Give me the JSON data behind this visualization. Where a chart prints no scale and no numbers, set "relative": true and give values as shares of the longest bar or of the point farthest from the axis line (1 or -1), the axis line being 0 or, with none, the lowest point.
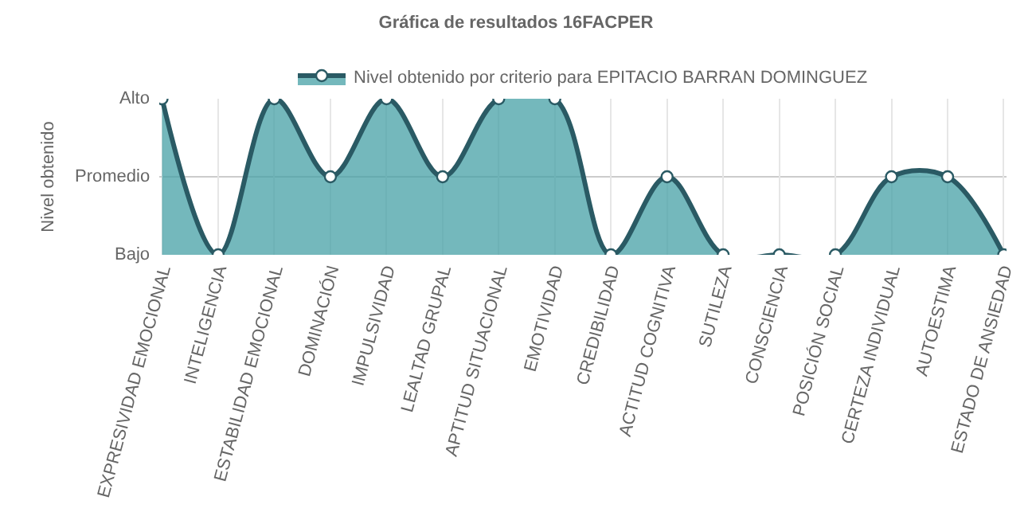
{
  "chart_data": {
    "type": "area",
    "title": "Gráfica de resultados 16FACPER",
    "ylabel": "Nivel obtenido",
    "relative": true,
    "categories": [
      "EXPRESIVIDAD EMOCIONAL",
      "INTELIGENCIA",
      "ESTABILIDAD EMOCIONAL",
      "DOMINACIÓN",
      "IMPULSIVIDAD",
      "LEALTAD GRUPAL",
      "APTITUD SITUACIONAL",
      "EMOTIVIDAD",
      "CREDIBILIDAD",
      "ACTITUD COGNITIVA",
      "SUTILEZA",
      "CONSCIENCIA",
      "POSICIÓN SOCIAL",
      "CERTEZA INDIVIDUAL",
      "AUTOESTIMA",
      "ESTADO DE ANSIEDAD"
    ],
    "series": [
      {
        "name": "Nivel obtenido por criterio para EPITACIO BARRAN DOMINGUEZ",
        "color": "#2a5a64",
        "values": [
          1,
          0,
          1,
          0.5,
          1,
          0.5,
          1,
          1,
          0,
          0.5,
          0,
          0,
          0,
          0.5,
          0.5,
          0
        ]
      }
    ],
    "annotations": [
      "Bajo",
      "Promedio",
      "Alto"
    ],
    "ref_lines": [
      {
        "axis": "y",
        "value": 0.5,
        "color": "#cccccc"
      }
    ],
    "grid": true,
    "legend": "top",
    "marker": "circle",
    "line_style": "solid"
  }
}
